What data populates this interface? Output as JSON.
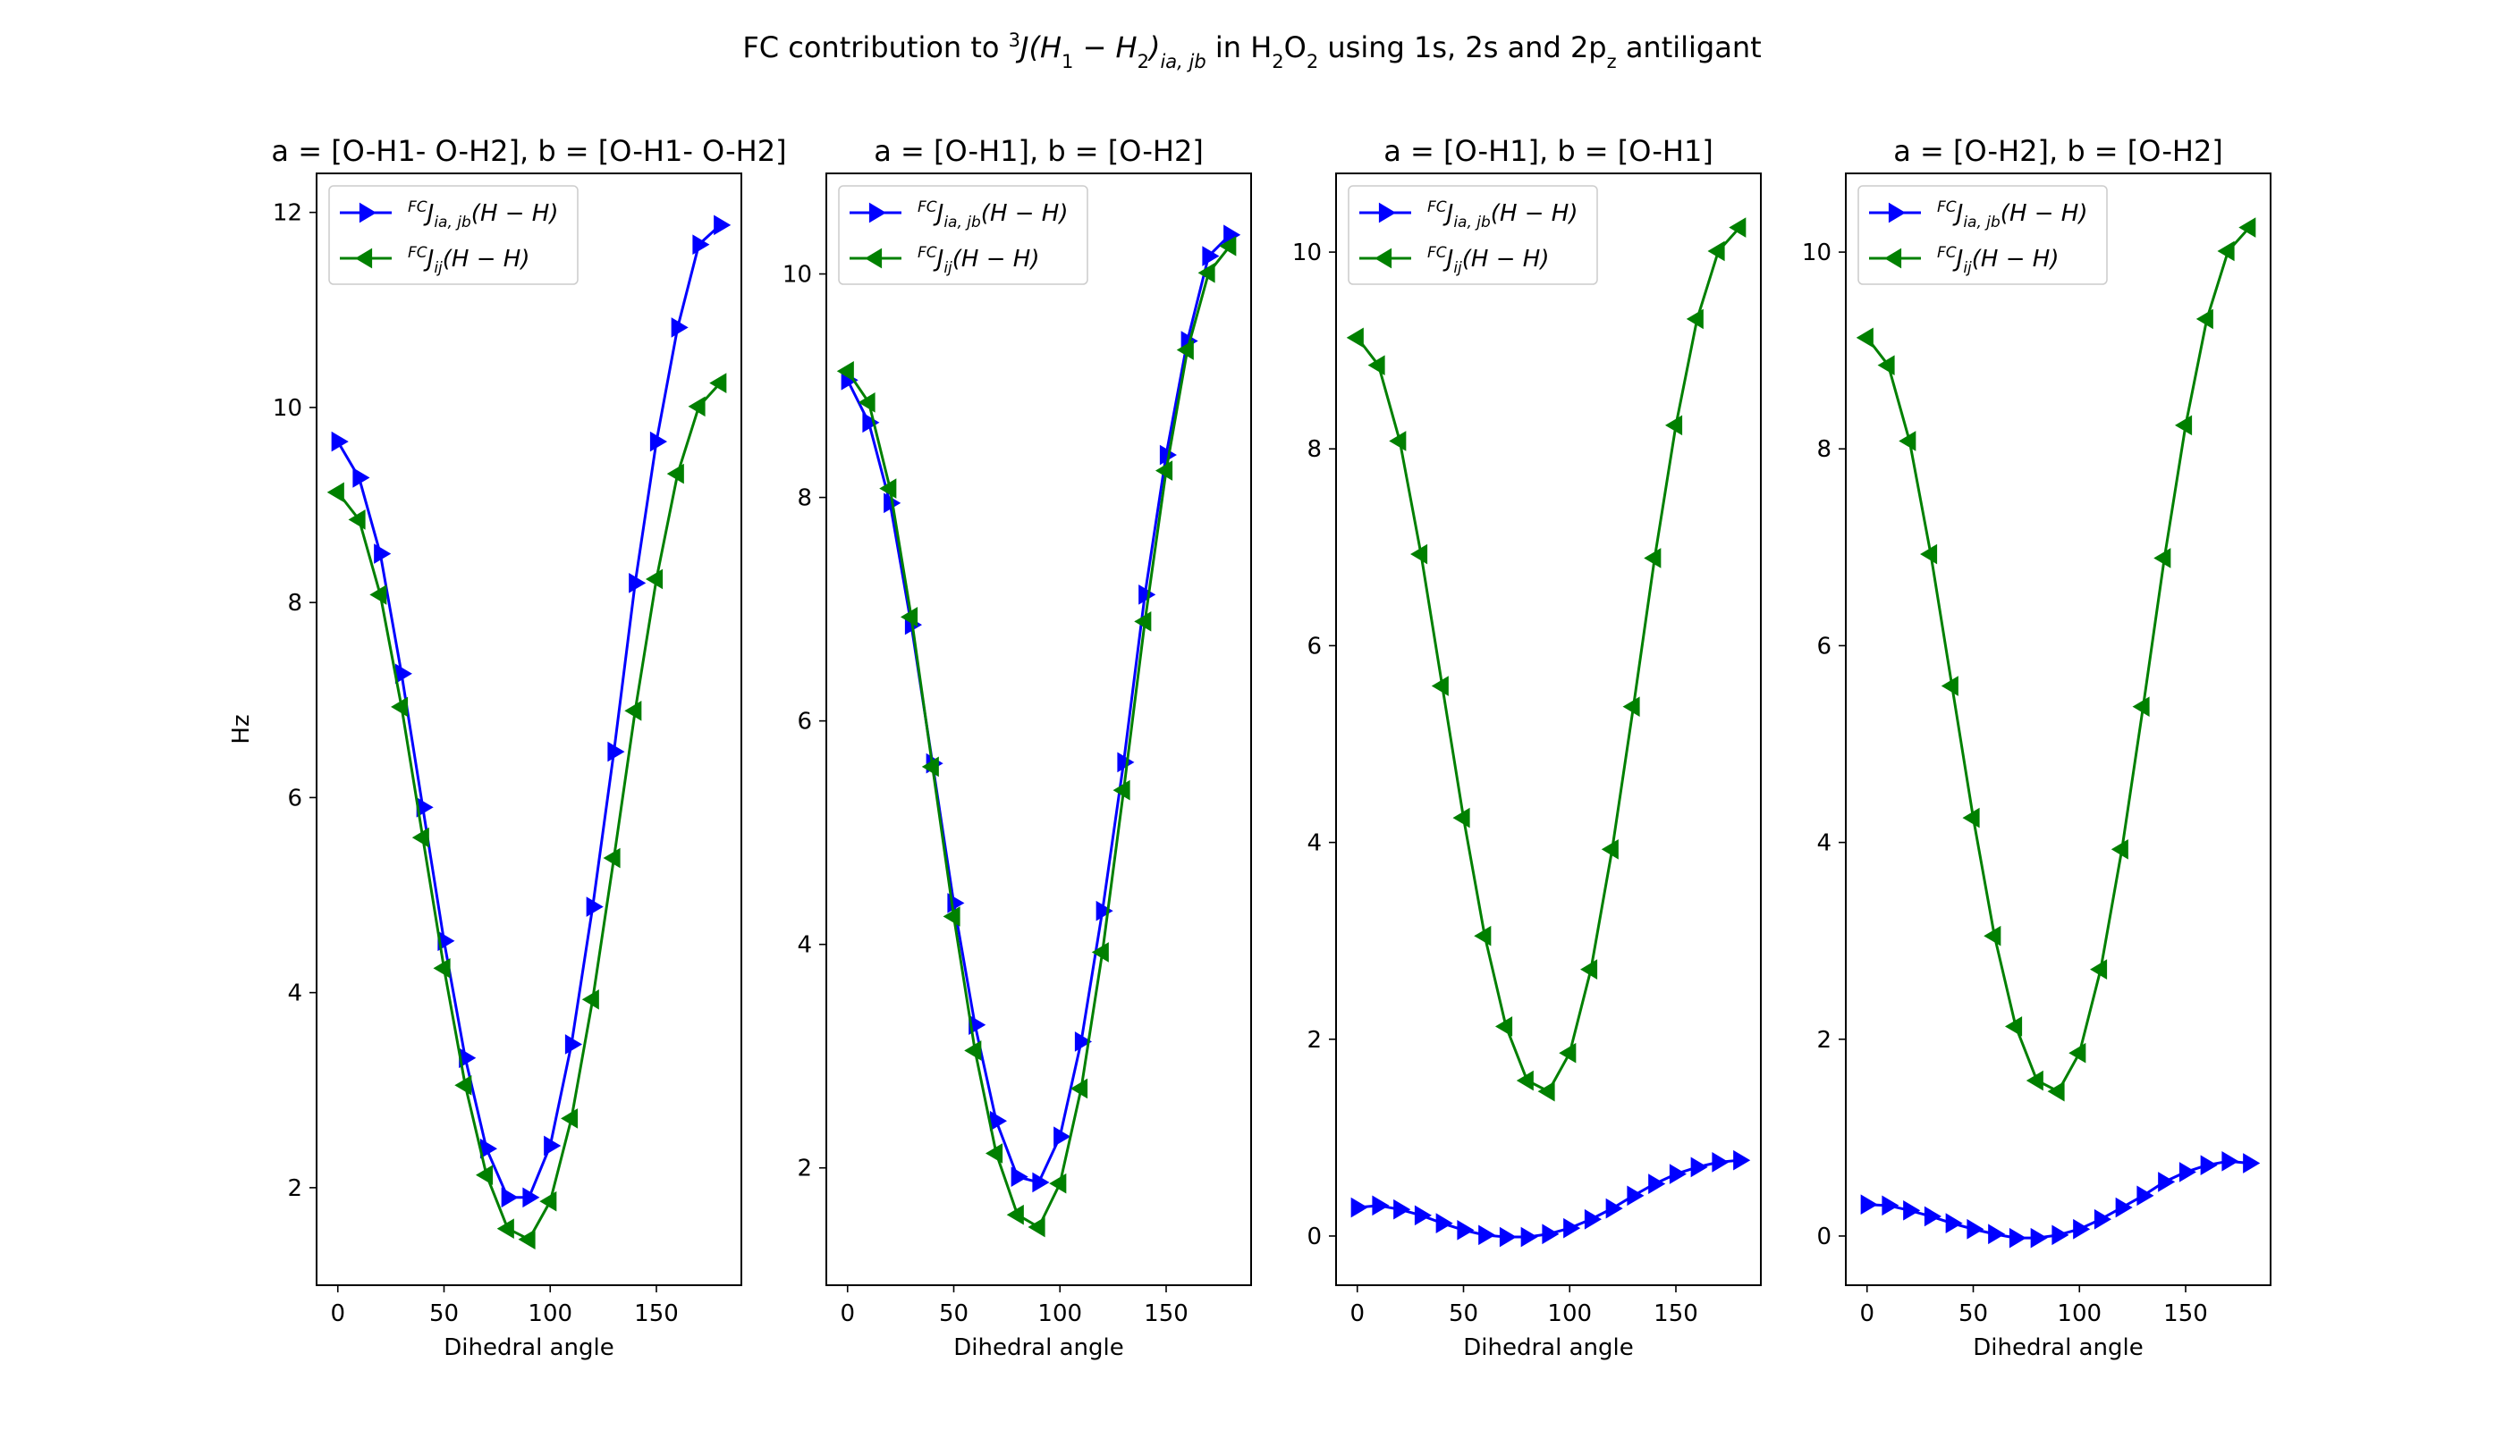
{
  "figure": {
    "suptitle_prefix": "FC contribution to ",
    "suptitle_sup": "3",
    "suptitle_J": "J",
    "suptitle_paren": "(H",
    "suptitle_sub1": "1",
    "suptitle_minus": " − H",
    "suptitle_sub2": "2",
    "suptitle_close": ")",
    "suptitle_subia": "ia, jb",
    "suptitle_mid": " in H",
    "suptitle_subH": "2",
    "suptitle_O": "O",
    "suptitle_subO": "2",
    "suptitle_rest": " using 1s, 2s and 2p",
    "suptitle_subz": "z",
    "suptitle_end": " antiligant"
  },
  "legend": {
    "entry1": {
      "sup": "FC",
      "J": "J",
      "sub": "ia, jb",
      "rest": "(H − H)"
    },
    "entry2": {
      "sup": "FC",
      "J": "J",
      "sub": "ij",
      "rest": "(H − H)"
    }
  },
  "colors": {
    "series1": "#0000ff",
    "series2": "#008000"
  },
  "chart_data": [
    {
      "type": "line",
      "title": "a = [O-H1- O-H2], b = [O-H1- O-H2]",
      "xlabel": "Dihedral angle",
      "ylabel": "Hz",
      "xlim": [
        -10,
        190
      ],
      "ylim": [
        1.0,
        12.4
      ],
      "xticks": [
        0,
        50,
        100,
        150
      ],
      "yticks": [
        2,
        4,
        6,
        8,
        10,
        12
      ],
      "legend_position": "upper-left",
      "grid": false,
      "x": [
        0,
        10,
        20,
        30,
        40,
        50,
        60,
        70,
        80,
        90,
        100,
        110,
        120,
        130,
        140,
        150,
        160,
        170,
        180
      ],
      "series": [
        {
          "name": "FCJia,jb(H−H)",
          "marker": "triangle-right",
          "color": "#0000ff",
          "values": [
            9.65,
            9.28,
            8.5,
            7.27,
            5.9,
            4.53,
            3.33,
            2.4,
            1.9,
            1.9,
            2.43,
            3.47,
            4.88,
            6.47,
            8.2,
            9.65,
            10.82,
            11.67,
            11.87
          ]
        },
        {
          "name": "FCJij(H−H)",
          "marker": "triangle-left",
          "color": "#008000",
          "values": [
            9.13,
            8.85,
            8.08,
            6.93,
            5.59,
            4.25,
            3.05,
            2.13,
            1.58,
            1.47,
            1.86,
            2.71,
            3.93,
            5.38,
            6.89,
            8.24,
            9.32,
            10.01,
            10.25
          ]
        }
      ]
    },
    {
      "type": "line",
      "title": "a = [O-H1], b = [O-H2]",
      "xlabel": "Dihedral angle",
      "ylabel": "",
      "xlim": [
        -10,
        190
      ],
      "ylim": [
        0.95,
        10.9
      ],
      "xticks": [
        0,
        50,
        100,
        150
      ],
      "yticks": [
        2,
        4,
        6,
        8,
        10
      ],
      "legend_position": "upper-left",
      "grid": false,
      "x": [
        0,
        10,
        20,
        30,
        40,
        50,
        60,
        70,
        80,
        90,
        100,
        110,
        120,
        130,
        140,
        150,
        160,
        170,
        180
      ],
      "series": [
        {
          "name": "FCJia,jb(H−H)",
          "marker": "triangle-right",
          "color": "#0000ff",
          "values": [
            9.05,
            8.67,
            7.95,
            6.86,
            5.62,
            4.37,
            3.28,
            2.42,
            1.92,
            1.87,
            2.28,
            3.13,
            4.3,
            5.63,
            7.13,
            8.38,
            9.4,
            10.16,
            10.35
          ]
        },
        {
          "name": "FCJij(H−H)",
          "marker": "triangle-left",
          "color": "#008000",
          "values": [
            9.13,
            8.85,
            8.08,
            6.93,
            5.59,
            4.25,
            3.05,
            2.13,
            1.58,
            1.47,
            1.86,
            2.71,
            3.93,
            5.38,
            6.89,
            8.24,
            9.32,
            10.01,
            10.25
          ]
        }
      ]
    },
    {
      "type": "line",
      "title": "a = [O-H1], b = [O-H1]",
      "xlabel": "Dihedral angle",
      "ylabel": "",
      "xlim": [
        -10,
        190
      ],
      "ylim": [
        -0.5,
        10.8
      ],
      "xticks": [
        0,
        50,
        100,
        150
      ],
      "yticks": [
        0,
        2,
        4,
        6,
        8,
        10
      ],
      "legend_position": "upper-left",
      "grid": false,
      "x": [
        0,
        10,
        20,
        30,
        40,
        50,
        60,
        70,
        80,
        90,
        100,
        110,
        120,
        130,
        140,
        150,
        160,
        170,
        180
      ],
      "series": [
        {
          "name": "FCJia,jb(H−H)",
          "marker": "triangle-right",
          "color": "#0000ff",
          "values": [
            0.29,
            0.31,
            0.27,
            0.21,
            0.13,
            0.06,
            0.01,
            -0.01,
            -0.01,
            0.02,
            0.08,
            0.17,
            0.28,
            0.41,
            0.53,
            0.63,
            0.7,
            0.75,
            0.77
          ]
        },
        {
          "name": "FCJij(H−H)",
          "marker": "triangle-left",
          "color": "#008000",
          "values": [
            9.13,
            8.85,
            8.08,
            6.93,
            5.59,
            4.25,
            3.05,
            2.13,
            1.58,
            1.47,
            1.86,
            2.71,
            3.93,
            5.38,
            6.89,
            8.24,
            9.32,
            10.01,
            10.25
          ]
        }
      ]
    },
    {
      "type": "line",
      "title": "a = [O-H2], b = [O-H2]",
      "xlabel": "Dihedral angle",
      "ylabel": "",
      "xlim": [
        -10,
        190
      ],
      "ylim": [
        -0.5,
        10.8
      ],
      "xticks": [
        0,
        50,
        100,
        150
      ],
      "yticks": [
        0,
        2,
        4,
        6,
        8,
        10
      ],
      "legend_position": "upper-left",
      "grid": false,
      "x": [
        0,
        10,
        20,
        30,
        40,
        50,
        60,
        70,
        80,
        90,
        100,
        110,
        120,
        130,
        140,
        150,
        160,
        170,
        180
      ],
      "series": [
        {
          "name": "FCJia,jb(H−H)",
          "marker": "triangle-right",
          "color": "#0000ff",
          "values": [
            0.32,
            0.31,
            0.26,
            0.2,
            0.13,
            0.07,
            0.02,
            -0.02,
            -0.02,
            0.01,
            0.07,
            0.17,
            0.29,
            0.41,
            0.55,
            0.65,
            0.72,
            0.76,
            0.74
          ]
        },
        {
          "name": "FCJij(H−H)",
          "marker": "triangle-left",
          "color": "#008000",
          "values": [
            9.13,
            8.85,
            8.08,
            6.93,
            5.59,
            4.25,
            3.05,
            2.13,
            1.58,
            1.47,
            1.86,
            2.71,
            3.93,
            5.38,
            6.89,
            8.24,
            9.32,
            10.01,
            10.25
          ]
        }
      ]
    }
  ]
}
